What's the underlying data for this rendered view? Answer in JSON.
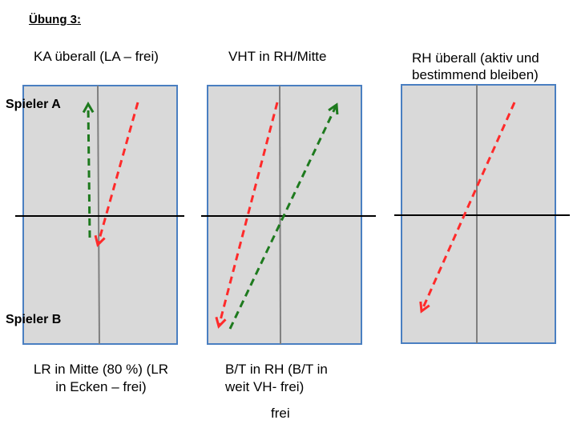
{
  "heading": "Übung 3:",
  "panels": [
    {
      "title": "KA überall (LA – frei)",
      "caption_lines": [
        "LR in Mitte (80 %) (LR",
        "in Ecken – frei)"
      ]
    },
    {
      "title": "VHT in RH/Mitte",
      "caption_lines": [
        "B/T in RH (B/T in",
        "weit VH- frei)",
        "frei"
      ]
    },
    {
      "title_lines": [
        "RH überall (aktiv und",
        "bestimmend bleiben)"
      ]
    }
  ],
  "players": {
    "a": "Spieler A",
    "b": "Spieler B"
  },
  "colors": {
    "table_fill": "#d9d9d9",
    "table_border": "#4a7fc1",
    "net": "#000000",
    "center_line": "#7f7f7f",
    "red_arrow": "#ff2a2a",
    "green_arrow": "#1e7a1e"
  }
}
